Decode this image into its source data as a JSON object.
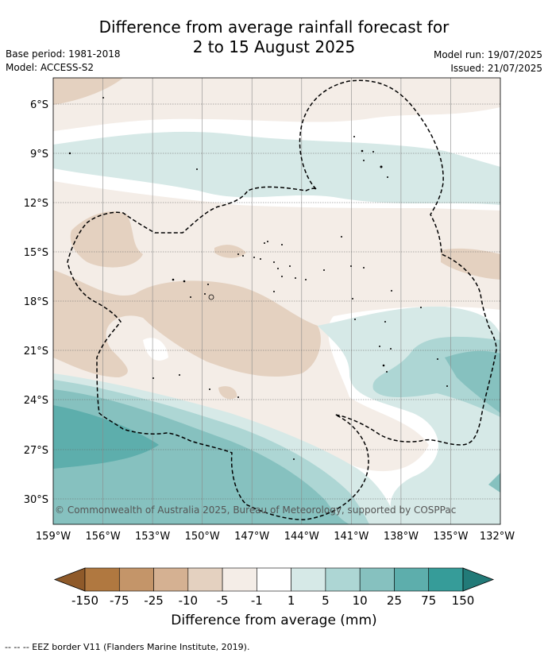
{
  "title": {
    "line1": "Difference from average rainfall forecast for",
    "line2": "2 to 15 August 2025"
  },
  "meta": {
    "base_period": "Base period: 1981-2018",
    "model": "Model: ACCESS-S2",
    "model_run": "Model run: 19/07/2025",
    "issued": "Issued: 21/07/2025"
  },
  "map": {
    "lat_labels": [
      "6°S",
      "9°S",
      "12°S",
      "15°S",
      "18°S",
      "21°S",
      "24°S",
      "27°S",
      "30°S"
    ],
    "lon_labels": [
      "159°W",
      "156°W",
      "153°W",
      "150°W",
      "147°W",
      "144°W",
      "141°W",
      "138°W",
      "135°W",
      "132°W"
    ],
    "copyright": "© Commonwealth of Australia 2025, Bureau of Meteorology, supported by COSPPac"
  },
  "legend": {
    "ticks": [
      "-150",
      "-75",
      "-25",
      "-10",
      "-5",
      "-1",
      "1",
      "5",
      "10",
      "25",
      "75",
      "150"
    ],
    "colors": [
      "#8f5a2a",
      "#b07840",
      "#c49569",
      "#d5b192",
      "#e4d1c0",
      "#f4ede7",
      "#ffffff",
      "#d6e9e7",
      "#add6d4",
      "#86c1bf",
      "#5daeac",
      "#369c99",
      "#227a78"
    ],
    "title": "Difference from average (mm)"
  },
  "footnote": "--  --  -- EEZ border V11 (Flanders Marine Institute, 2019)."
}
